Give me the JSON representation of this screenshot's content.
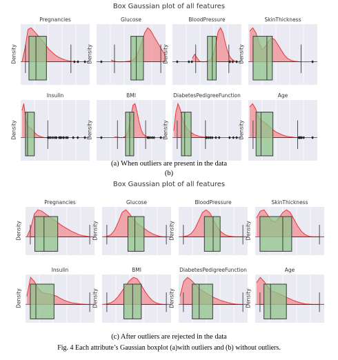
{
  "figure": {
    "caption": "Fig. 4 Each attribute’s Gaussian boxplot (a)with outliers and (b) without outliers.",
    "colors": {
      "axes_bg": "#eaeaf2",
      "grid": "#ffffff",
      "kde_fill": "#f08f93",
      "kde_line": "#e8353c",
      "box_fill": "#8fc38a",
      "box_edge": "#3a3a3a"
    }
  },
  "panels": [
    {
      "suptitle": "Box Gaussian plot of all features",
      "caption_a": "(a)   When outliers are present in the data",
      "caption_b": "(b)"
    },
    {
      "suptitle": "Box Gaussian plot of all features",
      "caption": "(c)   After outliers are rejected in the data"
    }
  ],
  "chart_data": [
    {
      "type": "box_kde",
      "title": "Box Gaussian plot of all features",
      "ylabel": "Density",
      "subplots": [
        {
          "title": "Pregnancies",
          "kde": [
            0,
            0.4,
            0.95,
            1.0,
            0.9,
            0.8,
            0.7,
            0.6,
            0.48,
            0.36,
            0.28,
            0.2,
            0.14,
            0.1,
            0.06,
            0.04,
            0.02,
            0.01,
            0,
            0
          ],
          "box": [
            0,
            1,
            3,
            6,
            13
          ],
          "outliers": [
            14,
            15,
            17
          ]
        },
        {
          "title": "Glucose",
          "kde": [
            0.05,
            0.02,
            0,
            0,
            0,
            0.01,
            0.02,
            0.05,
            0.12,
            0.3,
            0.55,
            0.85,
            1.0,
            0.92,
            0.75,
            0.6,
            0.45,
            0.3,
            0.18,
            0.08
          ],
          "box": [
            44,
            99,
            117,
            141,
            199
          ],
          "outliers": [
            0
          ]
        },
        {
          "title": "BloodPressure",
          "kde": [
            0.1,
            0.22,
            0.12,
            0.02,
            0,
            0,
            0.01,
            0.03,
            0.08,
            0.25,
            0.55,
            0.9,
            1.0,
            0.85,
            0.55,
            0.3,
            0.14,
            0.06,
            0.02,
            0
          ],
          "box": [
            38,
            62,
            72,
            80,
            106
          ],
          "outliers": [
            0,
            24,
            30,
            108,
            114,
            122
          ]
        },
        {
          "title": "SkinThickness",
          "kde": [
            0.9,
            1.0,
            0.85,
            0.55,
            0.35,
            0.45,
            0.6,
            0.7,
            0.65,
            0.5,
            0.35,
            0.2,
            0.1,
            0.05,
            0.02,
            0.01,
            0,
            0,
            0,
            0
          ],
          "box": [
            0,
            0,
            23,
            32,
            80
          ],
          "outliers": [
            99
          ]
        },
        {
          "title": "Insulin",
          "kde": [
            0.8,
            1.0,
            0.6,
            0.35,
            0.3,
            0.28,
            0.22,
            0.15,
            0.1,
            0.06,
            0.04,
            0.02,
            0.01,
            0,
            0,
            0,
            0,
            0,
            0,
            0
          ],
          "box": [
            0,
            0,
            30,
            127,
            318
          ],
          "outliers": [
            321,
            335,
            360,
            390,
            420,
            440,
            480,
            495,
            510,
            540,
            545,
            579,
            600,
            680,
            744,
            846
          ]
        },
        {
          "title": "BMI",
          "kde": [
            0.01,
            0.02,
            0.01,
            0,
            0,
            0.02,
            0.08,
            0.25,
            0.6,
            0.95,
            1.0,
            0.75,
            0.45,
            0.22,
            0.1,
            0.05,
            0.02,
            0.01,
            0,
            0
          ],
          "box": [
            18.2,
            27.3,
            32,
            36.6,
            50
          ],
          "outliers": [
            0,
            52.3,
            53.2,
            55,
            57.3,
            59.4,
            67.1
          ]
        },
        {
          "title": "DiabetesPedigreeFunction",
          "kde": [
            0.2,
            0.75,
            1.0,
            0.85,
            0.6,
            0.4,
            0.3,
            0.22,
            0.16,
            0.12,
            0.08,
            0.06,
            0.04,
            0.03,
            0.02,
            0.01,
            0.01,
            0,
            0,
            0
          ],
          "box": [
            0.078,
            0.244,
            0.3725,
            0.626,
            1.191
          ],
          "outliers": [
            1.21,
            1.25,
            1.32,
            1.39,
            1.46,
            1.6,
            1.73,
            2.14,
            2.29,
            2.42
          ]
        },
        {
          "title": "Age",
          "kde": [
            0.9,
            1.0,
            0.85,
            0.6,
            0.5,
            0.45,
            0.38,
            0.3,
            0.22,
            0.16,
            0.12,
            0.08,
            0.05,
            0.03,
            0.02,
            0.01,
            0,
            0,
            0,
            0
          ],
          "box": [
            21,
            24,
            29,
            41,
            66
          ],
          "outliers": [
            67,
            68,
            69,
            70,
            72,
            81
          ]
        }
      ]
    },
    {
      "type": "box_kde",
      "title": "Box Gaussian plot of all features",
      "ylabel": "Density",
      "subplots": [
        {
          "title": "Pregnancies",
          "kde": [
            0,
            0.3,
            0.85,
            1.0,
            0.95,
            0.85,
            0.75,
            0.65,
            0.55,
            0.45,
            0.36,
            0.28,
            0.2,
            0.14,
            0.08,
            0.04,
            0.02,
            0,
            0,
            0
          ],
          "box": [
            0,
            1,
            3,
            6,
            13
          ],
          "outliers": []
        },
        {
          "title": "Glucose",
          "kde": [
            0,
            0.02,
            0.08,
            0.25,
            0.55,
            0.9,
            1.0,
            0.85,
            0.65,
            0.5,
            0.4,
            0.3,
            0.2,
            0.12,
            0.06,
            0.02,
            0,
            0,
            0,
            0
          ],
          "box": [
            44,
            99,
            117,
            141,
            199
          ],
          "outliers": []
        },
        {
          "title": "BloodPressure",
          "kde": [
            0,
            0.01,
            0.04,
            0.12,
            0.3,
            0.6,
            0.9,
            1.0,
            0.88,
            0.6,
            0.35,
            0.18,
            0.08,
            0.03,
            0.01,
            0,
            0,
            0,
            0,
            0
          ],
          "box": [
            38,
            62,
            72,
            80,
            106
          ],
          "outliers": []
        },
        {
          "title": "SkinThickness",
          "kde": [
            0.7,
            0.95,
            1.0,
            0.8,
            0.6,
            0.55,
            0.7,
            0.9,
            1.0,
            0.9,
            0.65,
            0.4,
            0.2,
            0.08,
            0.02,
            0,
            0,
            0,
            0,
            0
          ],
          "box": [
            0,
            0,
            23,
            32,
            60
          ],
          "outliers": []
        },
        {
          "title": "Insulin",
          "kde": [
            0.3,
            1.0,
            0.85,
            0.6,
            0.45,
            0.4,
            0.38,
            0.35,
            0.3,
            0.22,
            0.15,
            0.1,
            0.06,
            0.04,
            0.02,
            0.01,
            0,
            0,
            0,
            0
          ],
          "box": [
            0,
            0,
            30,
            127,
            318
          ],
          "outliers": []
        },
        {
          "title": "BMI",
          "kde": [
            0,
            0.02,
            0.06,
            0.15,
            0.3,
            0.5,
            0.7,
            0.88,
            1.0,
            0.95,
            0.75,
            0.5,
            0.3,
            0.15,
            0.06,
            0.02,
            0,
            0,
            0,
            0
          ],
          "box": [
            18.2,
            27.3,
            32,
            36.6,
            50
          ],
          "outliers": []
        },
        {
          "title": "DiabetesPedigreeFunction",
          "kde": [
            0.3,
            0.85,
            1.0,
            0.9,
            0.75,
            0.6,
            0.5,
            0.42,
            0.34,
            0.26,
            0.2,
            0.14,
            0.1,
            0.06,
            0.03,
            0.01,
            0,
            0,
            0,
            0
          ],
          "box": [
            0.078,
            0.244,
            0.3725,
            0.626,
            1.191
          ],
          "outliers": []
        },
        {
          "title": "Age",
          "kde": [
            0.8,
            1.0,
            0.85,
            0.65,
            0.5,
            0.45,
            0.4,
            0.33,
            0.26,
            0.2,
            0.14,
            0.09,
            0.05,
            0.02,
            0.01,
            0,
            0,
            0,
            0,
            0
          ],
          "box": [
            21,
            24,
            29,
            41,
            66
          ],
          "outliers": []
        }
      ]
    }
  ]
}
